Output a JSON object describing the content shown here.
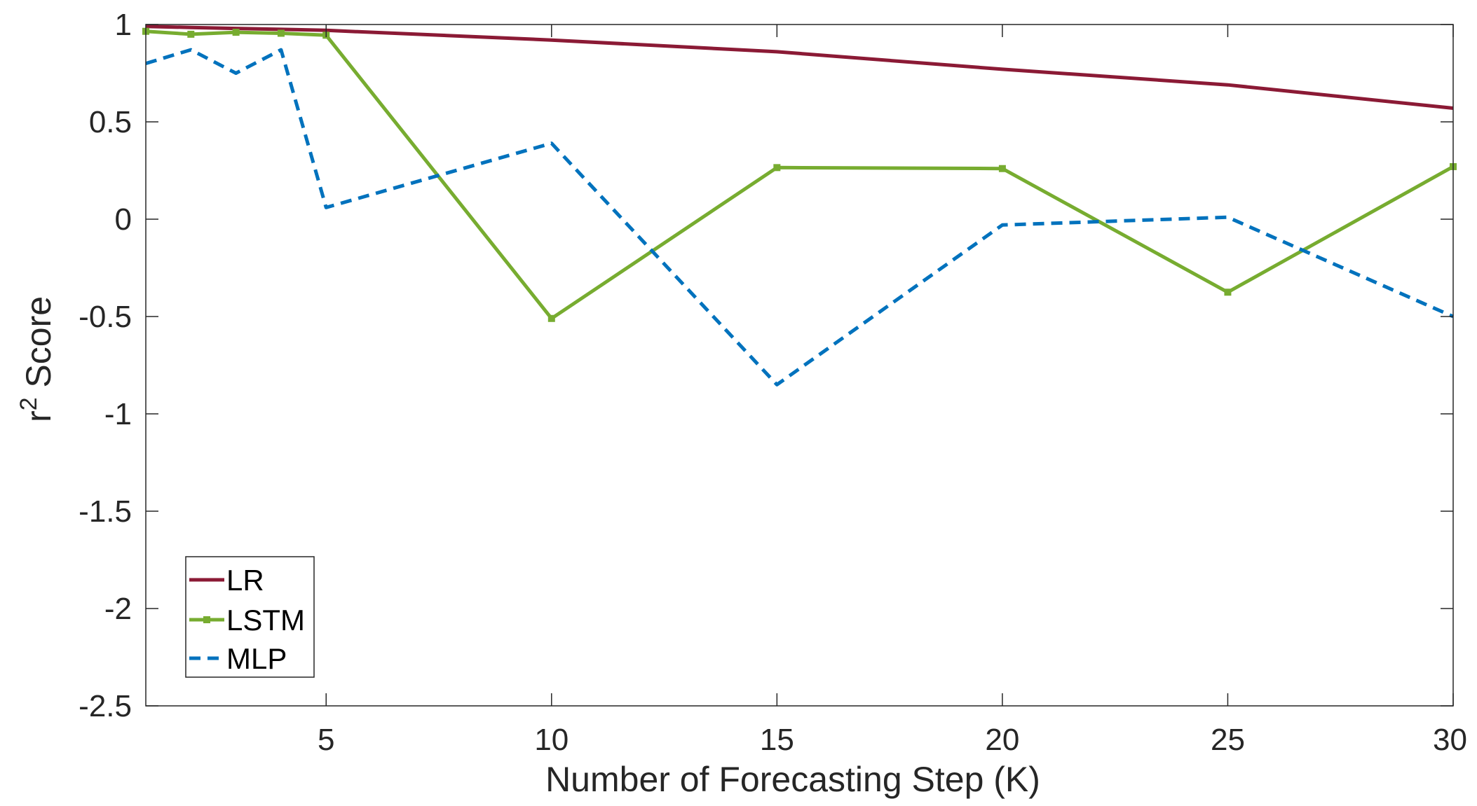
{
  "chart_data": {
    "type": "line",
    "title": "",
    "xlabel": "Number of Forecasting Step (K)",
    "ylabel_base": "r",
    "ylabel_sup": "2",
    "ylabel_rest": " Score",
    "xlim": [
      1,
      30
    ],
    "ylim": [
      -2.5,
      1
    ],
    "xticks": [
      5,
      10,
      15,
      20,
      25,
      30
    ],
    "yticks": [
      -2.5,
      -2,
      -1.5,
      -1,
      -0.5,
      0,
      0.5,
      1
    ],
    "xtick_labels": [
      "5",
      "10",
      "15",
      "20",
      "25",
      "30"
    ],
    "ytick_labels": [
      "-2.5",
      "-2",
      "-1.5",
      "-1",
      "-0.5",
      "0",
      "0.5",
      "1"
    ],
    "grid": false,
    "legend_position": "bottom-left",
    "series": [
      {
        "name": "LR",
        "color": "#8b1a35",
        "style": "solid",
        "marker": "none",
        "x": [
          1,
          2,
          3,
          4,
          5,
          10,
          15,
          20,
          25,
          30
        ],
        "y": [
          0.99,
          0.985,
          0.98,
          0.975,
          0.97,
          0.92,
          0.86,
          0.77,
          0.69,
          0.57
        ]
      },
      {
        "name": "LSTM",
        "color": "#77ac30",
        "style": "solid",
        "marker": "square",
        "x": [
          1,
          2,
          3,
          4,
          5,
          10,
          15,
          20,
          25,
          30
        ],
        "y": [
          0.965,
          0.95,
          0.96,
          0.955,
          0.945,
          -0.51,
          0.265,
          0.26,
          -0.375,
          0.27
        ]
      },
      {
        "name": "MLP",
        "color": "#0072bd",
        "style": "dashed",
        "marker": "none",
        "x": [
          1,
          2,
          3,
          4,
          5,
          10,
          15,
          20,
          25,
          30
        ],
        "y": [
          0.8,
          0.87,
          0.75,
          0.87,
          0.06,
          0.39,
          -0.85,
          -0.03,
          0.01,
          -0.5
        ]
      }
    ]
  }
}
